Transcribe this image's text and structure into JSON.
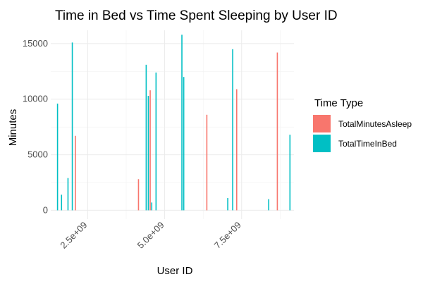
{
  "chart_data": {
    "type": "bar",
    "title": "Time in Bed vs Time Spent Sleeping by User ID",
    "xlabel": "User ID",
    "ylabel": "Minutes",
    "x_ticks": [
      {
        "value": 2500000000,
        "label": "2.5e+09"
      },
      {
        "value": 5000000000,
        "label": "5.0e+09"
      },
      {
        "value": 7500000000,
        "label": "7.5e+09"
      }
    ],
    "y_ticks": [
      {
        "value": 0,
        "label": "0"
      },
      {
        "value": 5000,
        "label": "5000"
      },
      {
        "value": 10000,
        "label": "10000"
      },
      {
        "value": 15000,
        "label": "15000"
      }
    ],
    "xlim": [
      1300000000,
      9200000000
    ],
    "ylim": [
      -800,
      16200
    ],
    "grid": true,
    "legend": {
      "title": "Time Type",
      "position": "right"
    },
    "colors": {
      "TotalMinutesAsleep": "#F8766D",
      "TotalTimeInBed": "#00BFC4"
    },
    "series": [
      {
        "name": "TotalMinutesAsleep",
        "points": [
          {
            "x": 2100000000,
            "y": 6700
          },
          {
            "x": 4150000000,
            "y": 2800
          },
          {
            "x": 4530000000,
            "y": 10800
          },
          {
            "x": 6370000000,
            "y": 8600
          },
          {
            "x": 7340000000,
            "y": 10900
          },
          {
            "x": 8660000000,
            "y": 14200
          }
        ]
      },
      {
        "name": "TotalTimeInBed",
        "points": [
          {
            "x": 1520000000,
            "y": 9600
          },
          {
            "x": 1650000000,
            "y": 1400
          },
          {
            "x": 1860000000,
            "y": 2900
          },
          {
            "x": 2000000000,
            "y": 15100
          },
          {
            "x": 4400000000,
            "y": 13100
          },
          {
            "x": 4470000000,
            "y": 10300
          },
          {
            "x": 4580000000,
            "y": 700
          },
          {
            "x": 4720000000,
            "y": 12400
          },
          {
            "x": 5560000000,
            "y": 15800
          },
          {
            "x": 5620000000,
            "y": 12000
          },
          {
            "x": 7050000000,
            "y": 1100
          },
          {
            "x": 7210000000,
            "y": 14500
          },
          {
            "x": 8380000000,
            "y": 1000
          },
          {
            "x": 9070000000,
            "y": 6800
          }
        ]
      }
    ]
  }
}
